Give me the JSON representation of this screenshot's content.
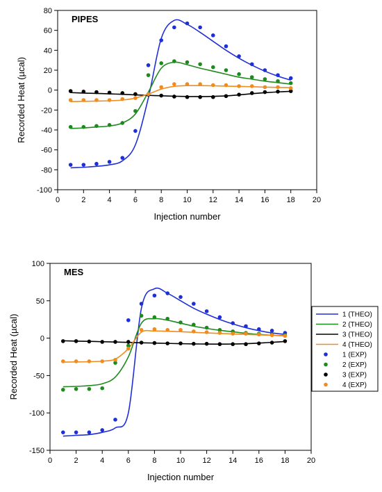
{
  "colors": {
    "series1": "#1f2fd6",
    "series2": "#1e8a1e",
    "series3": "#000000",
    "series4": "#f08c1e"
  },
  "legend": {
    "items": [
      {
        "label": "1 (THEO)",
        "kind": "line",
        "color": "#1f2fd6"
      },
      {
        "label": "2 (THEO)",
        "kind": "line",
        "color": "#1e8a1e"
      },
      {
        "label": "3 (THEO)",
        "kind": "line",
        "color": "#000000"
      },
      {
        "label": "4 (THEO)",
        "kind": "line",
        "color": "#f08c1e"
      },
      {
        "label": "1 (EXP)",
        "kind": "dot",
        "color": "#1f2fd6"
      },
      {
        "label": "2 (EXP)",
        "kind": "dot",
        "color": "#1e8a1e"
      },
      {
        "label": "3 (EXP)",
        "kind": "dot",
        "color": "#000000"
      },
      {
        "label": "4 (EXP)",
        "kind": "dot",
        "color": "#f08c1e"
      }
    ]
  },
  "chart_data": [
    {
      "type": "scatter",
      "title": "PIPES",
      "xlabel": "Injection number",
      "ylabel": "Recorded Heat (µcal)",
      "xlim": [
        0,
        20
      ],
      "ylim": [
        -100,
        80
      ],
      "xticks": [
        0,
        2,
        4,
        6,
        8,
        10,
        12,
        14,
        16,
        18,
        20
      ],
      "yticks": [
        -100,
        -80,
        -60,
        -40,
        -20,
        0,
        20,
        40,
        60,
        80
      ],
      "x": [
        1,
        2,
        3,
        4,
        5,
        6,
        7,
        8,
        9,
        10,
        11,
        12,
        13,
        14,
        15,
        16,
        17,
        18
      ],
      "series": [
        {
          "name": "1 (EXP)",
          "values": [
            -75,
            -75,
            -74,
            -72,
            -68,
            -41,
            25,
            50,
            63,
            67,
            63,
            55,
            44,
            34,
            26,
            20,
            15,
            12
          ]
        },
        {
          "name": "2 (EXP)",
          "values": [
            -37,
            -37,
            -36,
            -35,
            -33,
            -21,
            15,
            27,
            29,
            28,
            26,
            23,
            20,
            16,
            13,
            11,
            9,
            7
          ]
        },
        {
          "name": "3 (EXP)",
          "values": [
            -1,
            -1.5,
            -2,
            -2.5,
            -3,
            -4,
            -4.5,
            -5.5,
            -6.5,
            -7,
            -7,
            -7,
            -6,
            -4.5,
            -3,
            -2,
            -1.5,
            -1
          ]
        },
        {
          "name": "4 (EXP)",
          "values": [
            -10,
            -10,
            -10,
            -10,
            -9,
            -8,
            -4,
            3,
            6,
            6,
            6,
            5,
            5,
            4,
            4,
            3,
            3,
            2
          ]
        },
        {
          "name": "1 (THEO)",
          "values": [
            -78,
            -77.5,
            -76.5,
            -75,
            -71,
            -55,
            -8,
            52,
            70,
            66,
            58,
            49,
            40,
            32,
            25,
            19,
            14,
            10
          ]
        },
        {
          "name": "2 (THEO)",
          "values": [
            -38.5,
            -38,
            -37,
            -36,
            -33,
            -24,
            -2,
            22,
            28,
            25.5,
            22,
            19,
            16,
            13,
            11,
            9,
            7.5,
            6
          ]
        },
        {
          "name": "3 (THEO)",
          "values": [
            -2.5,
            -3,
            -3.3,
            -3.8,
            -4.2,
            -4.8,
            -5.3,
            -5.7,
            -6.1,
            -6.4,
            -6.5,
            -6.3,
            -5.8,
            -4.8,
            -3.6,
            -2.6,
            -1.8,
            -1.2
          ]
        },
        {
          "name": "4 (THEO)",
          "values": [
            -11.5,
            -11.3,
            -11,
            -10.7,
            -10,
            -8,
            -4,
            1,
            3.8,
            4.5,
            4.5,
            4.3,
            4,
            3.7,
            3.4,
            3,
            2.7,
            2.5
          ]
        }
      ]
    },
    {
      "type": "scatter",
      "title": "MES",
      "xlabel": "Injection number",
      "ylabel": "Recorded Heat (µcal)",
      "xlim": [
        0,
        20
      ],
      "ylim": [
        -150,
        100
      ],
      "xticks": [
        0,
        2,
        4,
        6,
        8,
        10,
        12,
        14,
        16,
        18,
        20
      ],
      "yticks": [
        -150,
        -100,
        -50,
        0,
        50,
        100
      ],
      "x": [
        1,
        2,
        3,
        4,
        5,
        6,
        7,
        8,
        9,
        10,
        11,
        12,
        13,
        14,
        15,
        16,
        17,
        18
      ],
      "series": [
        {
          "name": "1 (EXP)",
          "values": [
            -126,
            -126,
            -126,
            -123,
            -109,
            24,
            46,
            57,
            60,
            55,
            46,
            36,
            28,
            20,
            16,
            12,
            10,
            7
          ]
        },
        {
          "name": "2 (EXP)",
          "values": [
            -69,
            -68,
            -68,
            -67,
            -33,
            -10,
            30,
            28,
            26,
            21,
            18,
            14,
            11,
            9,
            7,
            6,
            5,
            4
          ]
        },
        {
          "name": "3 (EXP)",
          "values": [
            -4,
            -4,
            -4.5,
            -5,
            -5,
            -5,
            -6,
            -6.5,
            -7,
            -7,
            -7.5,
            -7.5,
            -8,
            -8,
            -8,
            -7,
            -6,
            -4
          ]
        },
        {
          "name": "4 (EXP)",
          "values": [
            -31,
            -31,
            -31,
            -31,
            -29,
            -14,
            11,
            12,
            11,
            11,
            9,
            8,
            7,
            6,
            6,
            5,
            4,
            3
          ]
        },
        {
          "name": "1 (THEO)",
          "values": [
            -131,
            -130,
            -129,
            -126,
            -120,
            -100,
            40,
            66,
            60,
            50,
            40,
            32,
            25,
            19,
            14,
            10,
            7,
            5
          ]
        },
        {
          "name": "2 (THEO)",
          "values": [
            -65,
            -64.5,
            -63.5,
            -61,
            -52,
            -25,
            20,
            26,
            24,
            20,
            16,
            13,
            10.5,
            8.5,
            6.5,
            5,
            3.8,
            3
          ]
        },
        {
          "name": "3 (THEO)",
          "values": [
            -3.5,
            -4,
            -4.3,
            -4.8,
            -5.2,
            -5.7,
            -6.2,
            -6.6,
            -7,
            -7.4,
            -7.7,
            -7.9,
            -8,
            -7.8,
            -7.4,
            -6.6,
            -5.6,
            -4.5
          ]
        },
        {
          "name": "4 (THEO)",
          "values": [
            -32,
            -31.8,
            -31.5,
            -30.8,
            -28,
            -14,
            8,
            9.5,
            9.2,
            8.6,
            7.8,
            7,
            6.3,
            5.6,
            5,
            4.4,
            3.8,
            3.3
          ]
        }
      ]
    }
  ]
}
